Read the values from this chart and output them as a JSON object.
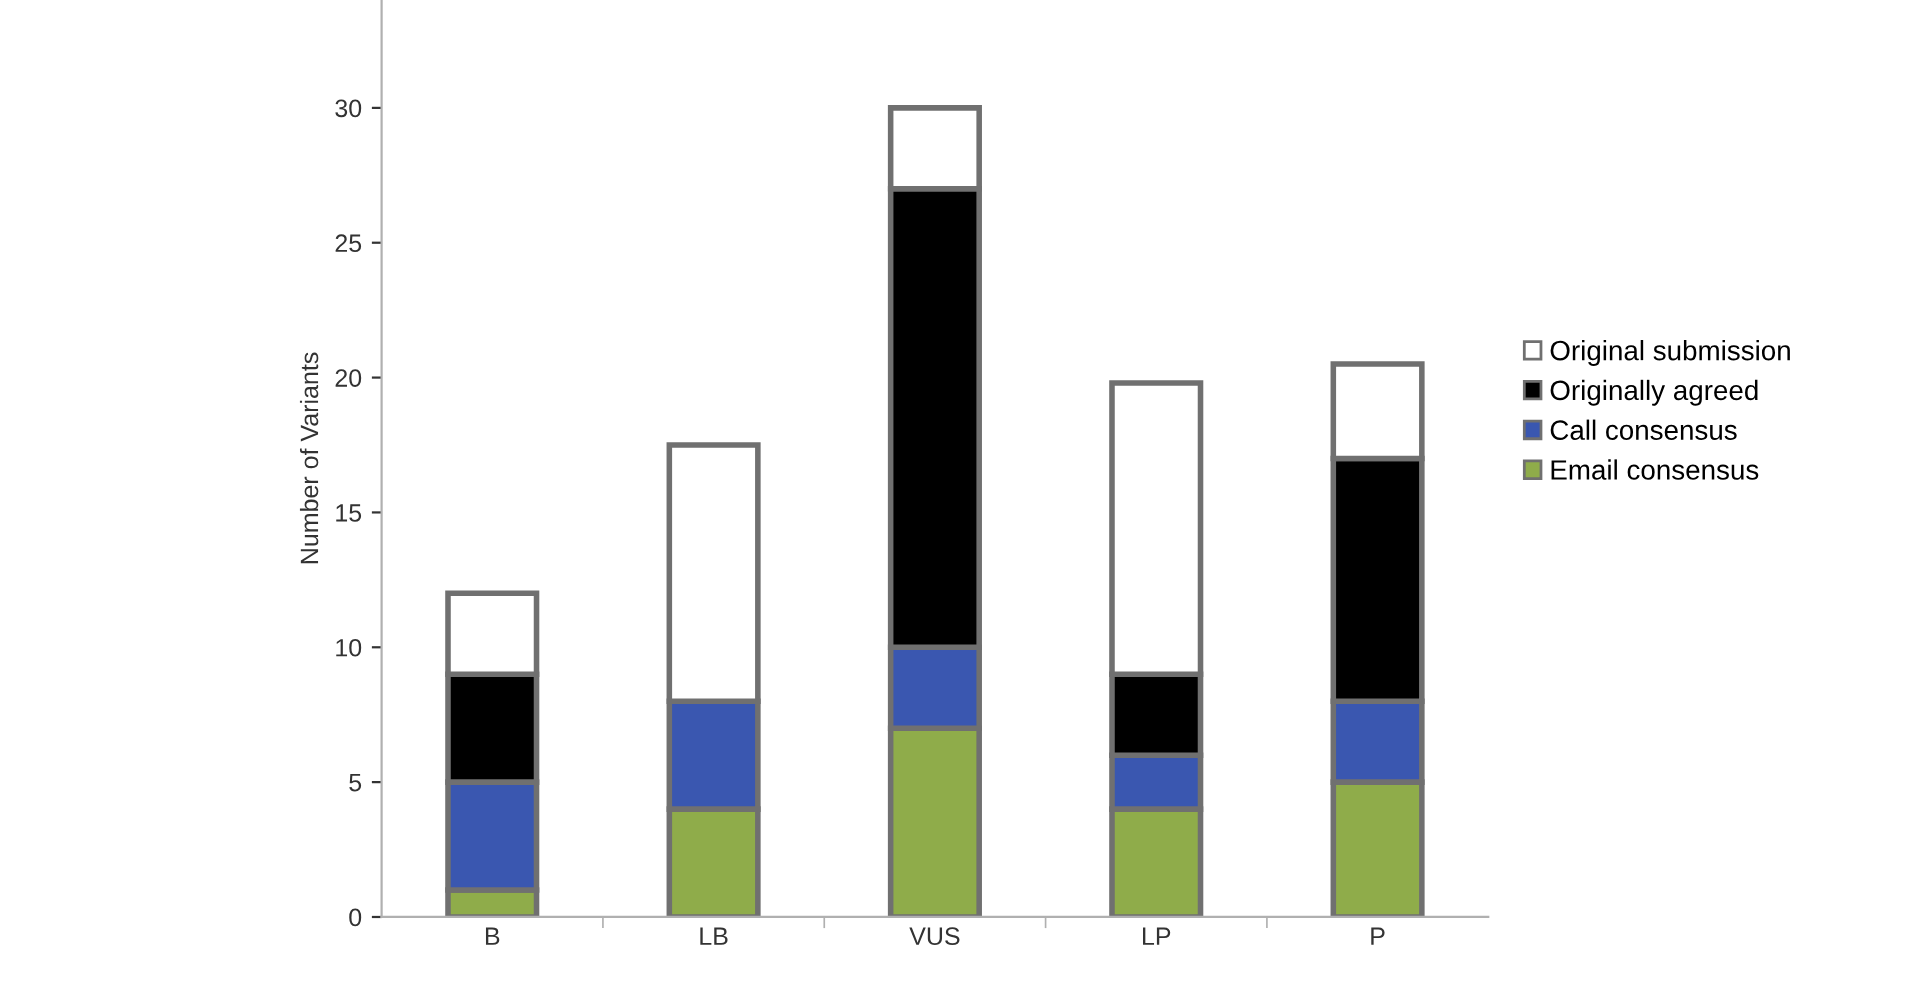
{
  "chart_data": {
    "type": "bar",
    "stacked": true,
    "ylabel": "Number of Variants",
    "categories": [
      "B",
      "LB",
      "VUS",
      "LP",
      "P"
    ],
    "series": [
      {
        "name": "Email consensus",
        "color": "#8fac4a",
        "values": [
          1,
          4,
          7,
          4,
          5
        ]
      },
      {
        "name": "Call consensus",
        "color": "#3a57b0",
        "values": [
          4,
          4,
          3,
          2,
          3
        ]
      },
      {
        "name": "Originally agreed",
        "color": "#000000",
        "values": [
          4,
          0,
          17,
          3,
          9
        ]
      },
      {
        "name": "Original submission",
        "color": "#ffffff",
        "values": [
          3,
          9.5,
          3,
          10.8,
          3.5
        ]
      }
    ],
    "ylim": [
      0,
      34
    ],
    "yticks": [
      0,
      5,
      10,
      15,
      20,
      25,
      30
    ],
    "grid": false,
    "legend": "right"
  }
}
